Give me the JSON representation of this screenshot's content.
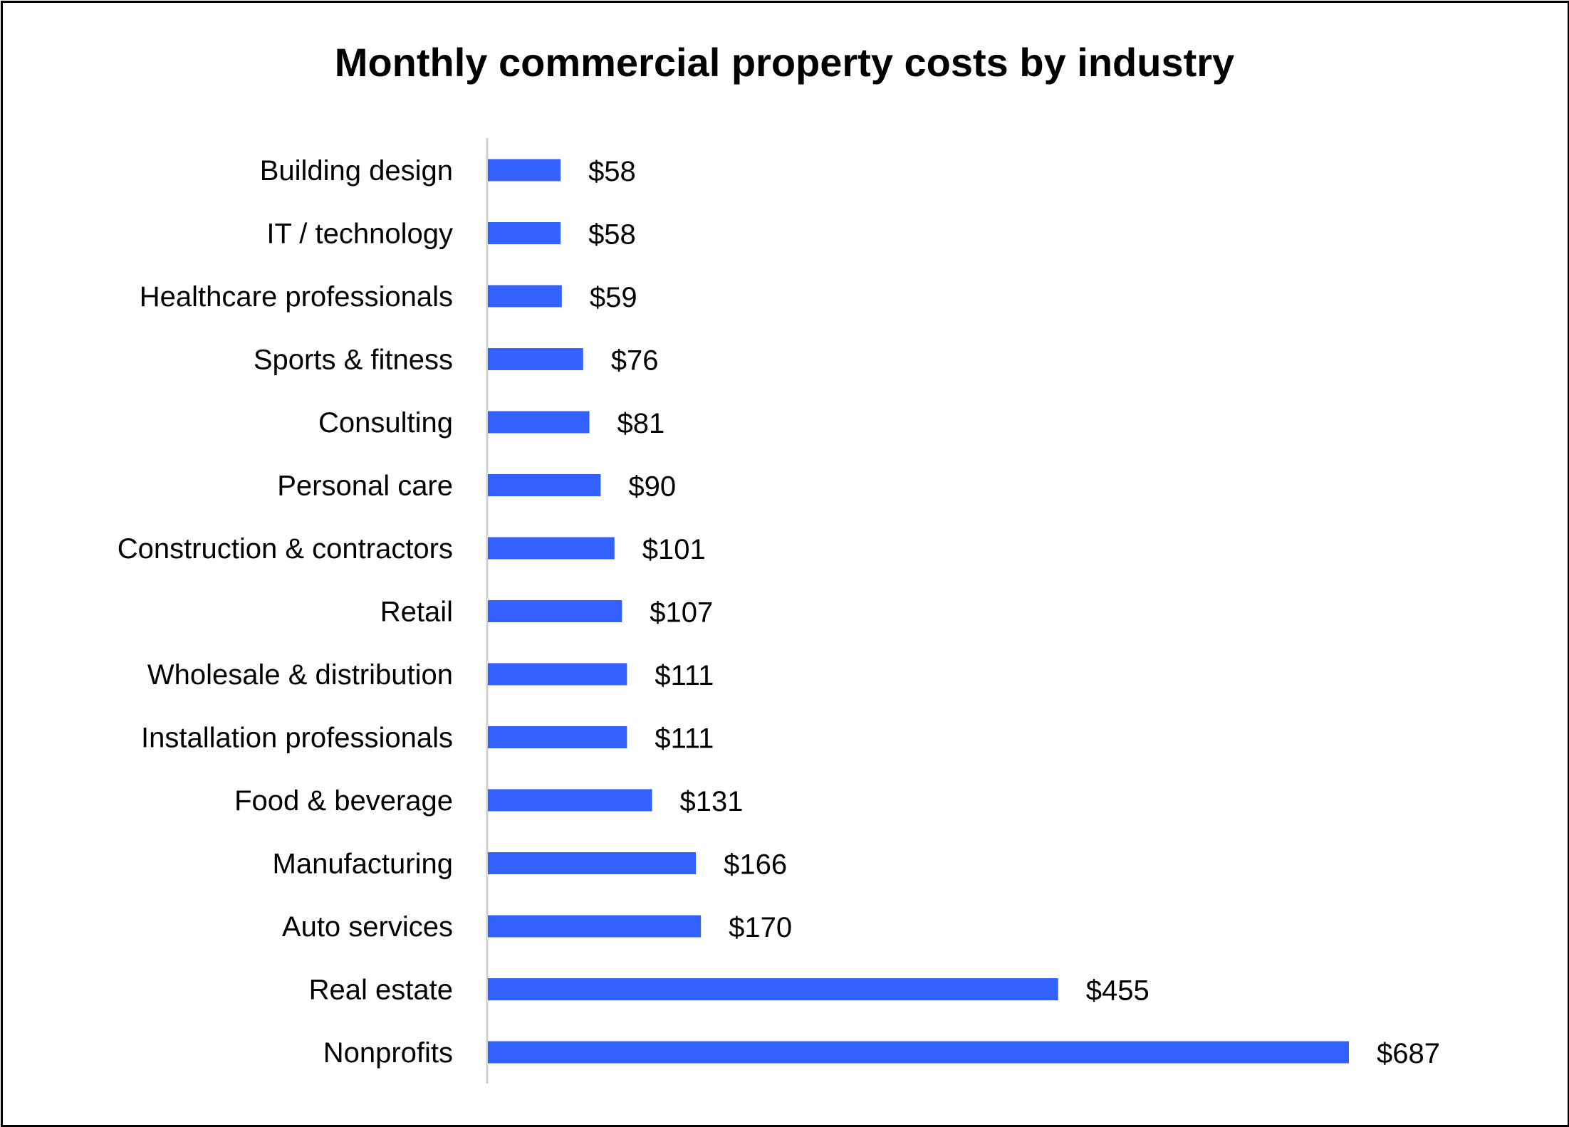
{
  "chart_data": {
    "type": "bar",
    "orientation": "horizontal",
    "title": "Monthly commercial property costs by industry",
    "xlabel": "",
    "ylabel": "",
    "categories": [
      "Building design",
      "IT / technology",
      "Healthcare professionals",
      "Sports & fitness",
      "Consulting",
      "Personal care",
      "Construction & contractors",
      "Retail",
      "Wholesale & distribution",
      "Installation professionals",
      "Food & beverage",
      "Manufacturing",
      "Auto services",
      "Real estate",
      "Nonprofits"
    ],
    "values": [
      58,
      58,
      59,
      76,
      81,
      90,
      101,
      107,
      111,
      111,
      131,
      166,
      170,
      455,
      687
    ],
    "data_labels": [
      "$58",
      "$58",
      "$59",
      "$76",
      "$81",
      "$90",
      "$101",
      "$107",
      "$111",
      "$111",
      "$131",
      "$166",
      "$170",
      "$455",
      "$687"
    ],
    "xlim": [
      0,
      687
    ],
    "grid": false,
    "legend": "none",
    "bar_color": "#3361FF"
  }
}
